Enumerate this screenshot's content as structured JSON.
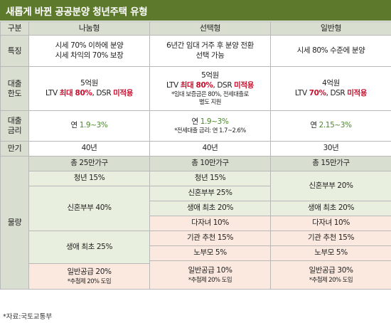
{
  "title": "새롭게 바뀐 공공분양 청년주택 유형",
  "headers": {
    "col0": "구분",
    "col1": "나눔형",
    "col2": "선택형",
    "col3": "일반형"
  },
  "rows": {
    "feature": {
      "label": "특징",
      "c1_line1": "시세 70% 이하에 분양",
      "c1_line2": "시세 차익의 70% 보장",
      "c2_line1": "6년간 임대 거주 후 분양 전환",
      "c2_line2": "선택 가능",
      "c3": "시세 80% 수준에 분양"
    },
    "loan_limit": {
      "label_line1": "대출",
      "label_line2": "한도",
      "c1_amount": "5억원",
      "c1_ltv_prefix": "LTV ",
      "c1_ltv_value": "최대 80%",
      "c1_dsr_prefix": ", DSR ",
      "c1_dsr_value": "미적용",
      "c2_amount": "5억원",
      "c2_ltv_prefix": "LTV ",
      "c2_ltv_value": "최대 80%",
      "c2_dsr_prefix": ", DSR ",
      "c2_dsr_value": "미적용",
      "c2_note_line1": "*임대 보증금은 80%, 전세대출로",
      "c2_note_line2": "별도 지원",
      "c3_amount": "4억원",
      "c3_ltv_prefix": "LTV ",
      "c3_ltv_value": "70%",
      "c3_dsr_prefix": ", DSR ",
      "c3_dsr_value": "미적용"
    },
    "loan_rate": {
      "label_line1": "대출",
      "label_line2": "금리",
      "c1_prefix": "연 ",
      "c1_value": "1.9~3%",
      "c2_prefix": "연 ",
      "c2_value": "1.9~3%",
      "c2_note": "*전세대출 금리: 연 1.7~2.6%",
      "c3_prefix": "연 ",
      "c3_value": "2.15~3%"
    },
    "maturity": {
      "label": "만기",
      "c1": "40년",
      "c2": "40년",
      "c3": "30년"
    },
    "volume": {
      "label": "물량",
      "c1_total": "총 25만가구",
      "c2_total": "총 10만가구",
      "c3_total": "총 15만가구",
      "c1_youth": "청년 15%",
      "c1_newlywed": "신혼부부 40%",
      "c1_firsttime": "생애 최초 25%",
      "c1_general": "일반공급 20%",
      "c1_general_note": "*추첨제 20% 도입",
      "c2_youth": "청년 15%",
      "c2_newlywed": "신혼부부 25%",
      "c2_firsttime": "생애 최초 20%",
      "c2_multichild": "다자녀 10%",
      "c2_institution": "기관 추천 15%",
      "c2_parents": "노부모 5%",
      "c2_general": "일반공급 10%",
      "c2_general_note": "*추첨제 20% 도입",
      "c3_newlywed": "신혼부부 20%",
      "c3_firsttime": "생애 최초 20%",
      "c3_multichild": "다자녀 10%",
      "c3_institution": "기관 추천 15%",
      "c3_parents": "노부모 5%",
      "c3_general": "일반공급 30%",
      "c3_general_note": "*추첨제 20% 도입"
    }
  },
  "source": "*자료:국토교통부",
  "colors": {
    "title_bg": "#5d7a2c",
    "header_bg": "#d9dfd0",
    "green_cell": "#e9efde",
    "pink_cell": "#fbe9df",
    "highlight_red": "#c8102e",
    "highlight_green": "#4b8a2c"
  }
}
